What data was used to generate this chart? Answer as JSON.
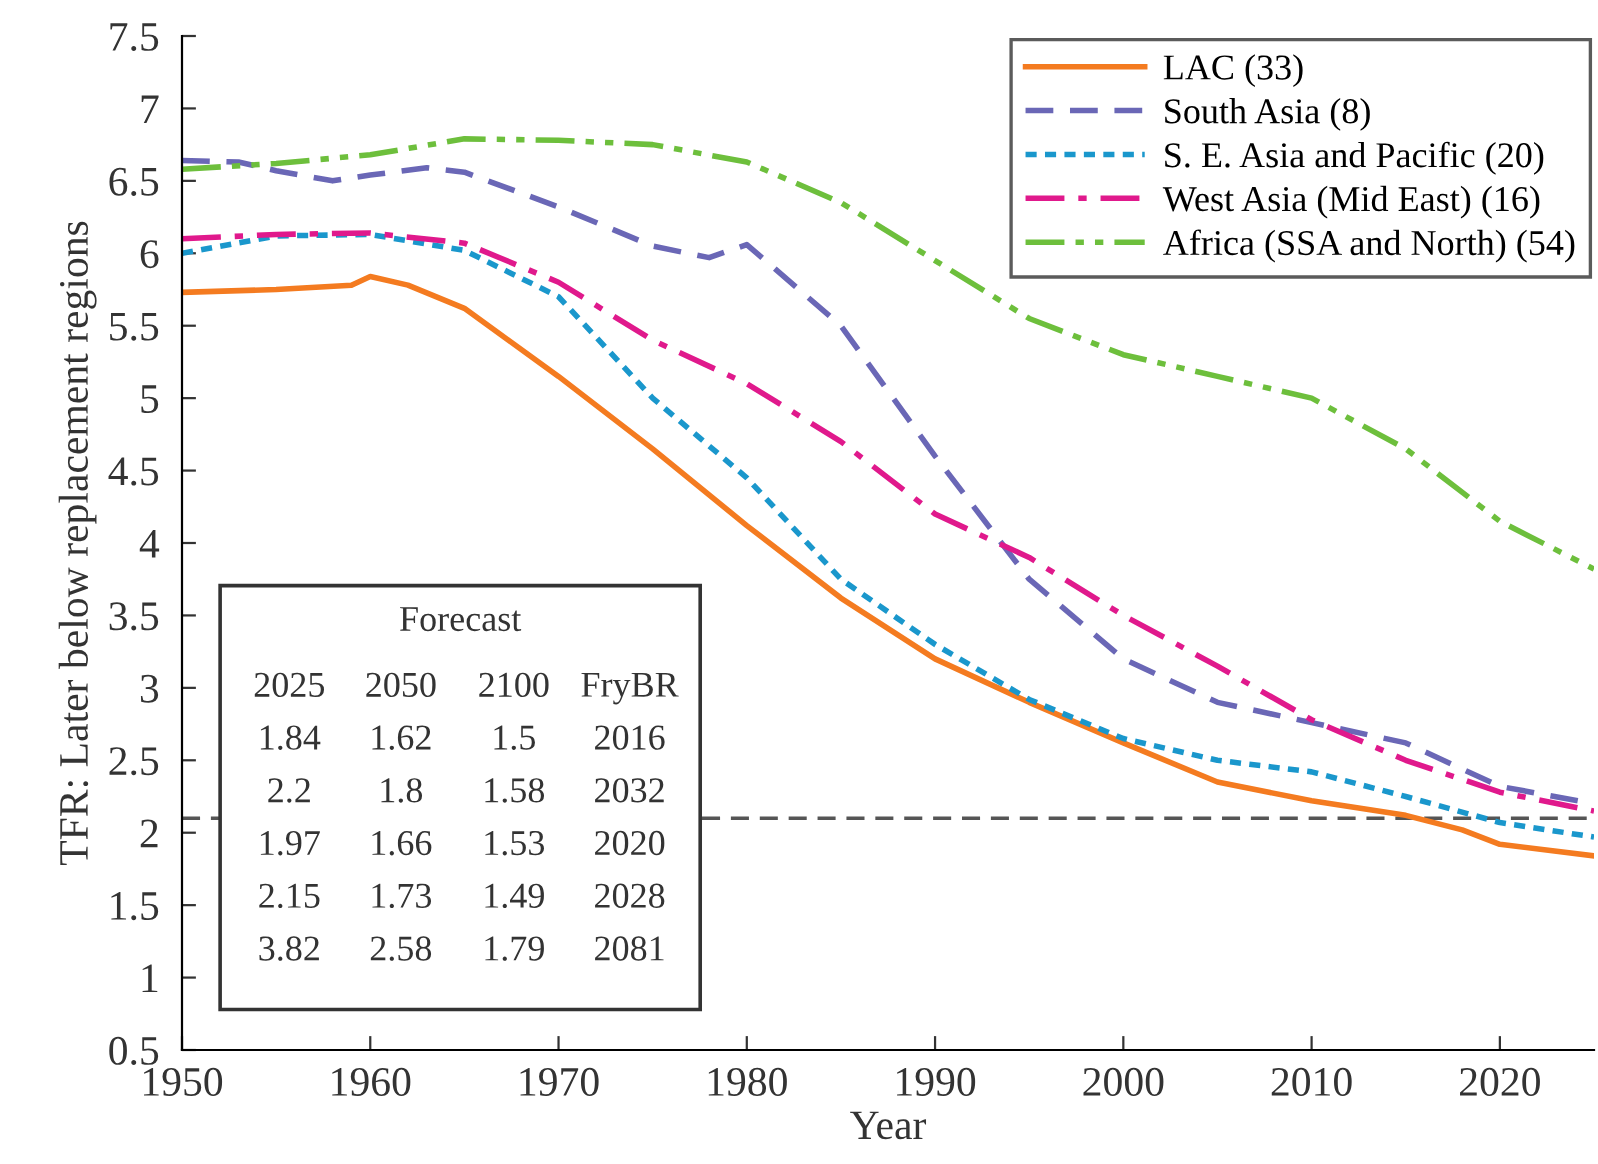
{
  "chart_data": {
    "type": "line",
    "xlabel": "Year",
    "ylabel": "TFR: Later below replacement regions",
    "x": [
      1950,
      1955,
      1960,
      1965,
      1970,
      1975,
      1980,
      1985,
      1990,
      1995,
      2000,
      2005,
      2010,
      2015,
      2020,
      2025
    ],
    "series": [
      {
        "name": "LAC (33)",
        "color": "#f47b20",
        "line_style": "solid",
        "x": [
          1950,
          1955,
          1959,
          1960,
          1962,
          1965,
          1970,
          1975,
          1980,
          1985,
          1990,
          1995,
          2000,
          2005,
          2010,
          2015,
          2018,
          2020,
          2025
        ],
        "values": [
          5.73,
          5.75,
          5.78,
          5.84,
          5.78,
          5.62,
          5.15,
          4.65,
          4.12,
          3.62,
          3.2,
          2.9,
          2.62,
          2.35,
          2.22,
          2.12,
          2.02,
          1.92,
          1.84
        ]
      },
      {
        "name": "South Asia (8)",
        "color": "#6a67b6",
        "line_style": "dashed",
        "x": [
          1950,
          1953,
          1955,
          1958,
          1960,
          1963,
          1965,
          1970,
          1975,
          1978,
          1980,
          1985,
          1990,
          1995,
          2000,
          2005,
          2010,
          2015,
          2020,
          2025
        ],
        "values": [
          6.64,
          6.63,
          6.57,
          6.5,
          6.54,
          6.59,
          6.56,
          6.32,
          6.05,
          5.97,
          6.06,
          5.5,
          4.6,
          3.75,
          3.2,
          2.9,
          2.76,
          2.62,
          2.32,
          2.2
        ]
      },
      {
        "name": "S. E. Asia and Pacific (20)",
        "color": "#1a97cc",
        "line_style": "dotted",
        "values": [
          6.0,
          6.12,
          6.13,
          6.02,
          5.7,
          5.0,
          4.45,
          3.75,
          3.3,
          2.92,
          2.65,
          2.5,
          2.42,
          2.25,
          2.07,
          1.97
        ]
      },
      {
        "name": "West Asia (Mid East) (16)",
        "color": "#e0198c",
        "line_style": "dashdot",
        "values": [
          6.1,
          6.13,
          6.14,
          6.07,
          5.8,
          5.4,
          5.1,
          4.7,
          4.2,
          3.9,
          3.5,
          3.15,
          2.78,
          2.5,
          2.28,
          2.15
        ]
      },
      {
        "name": "Africa (SSA and North) (54)",
        "color": "#6dbf3c",
        "line_style": "dashdotdot",
        "values": [
          6.58,
          6.62,
          6.68,
          6.79,
          6.78,
          6.75,
          6.63,
          6.35,
          5.95,
          5.55,
          5.3,
          5.15,
          5.0,
          4.65,
          4.15,
          3.82
        ]
      }
    ],
    "xlim": [
      1950,
      2025
    ],
    "xticks": [
      1950,
      1960,
      1970,
      1980,
      1990,
      2000,
      2010,
      2020
    ],
    "ylim": [
      0.5,
      7.5
    ],
    "yticks": [
      0.5,
      1,
      1.5,
      2,
      2.5,
      3,
      3.5,
      4,
      4.5,
      5,
      5.5,
      6,
      6.5,
      7,
      7.5
    ],
    "ref_lines": [
      {
        "axis": "y",
        "value": 2.1,
        "color": "#555555",
        "line_style": "dashed"
      }
    ],
    "annotations": [
      "Forecast",
      "2025 2050 2100 FryBR",
      "1.84 1.62 1.5 2016",
      "2.2 1.8 1.58 2032",
      "1.97 1.66 1.53 2020",
      "2.15 1.73 1.49 2028",
      "3.82 2.58 1.79 2081"
    ],
    "grid": false,
    "legend": "top right",
    "marker": "none"
  }
}
